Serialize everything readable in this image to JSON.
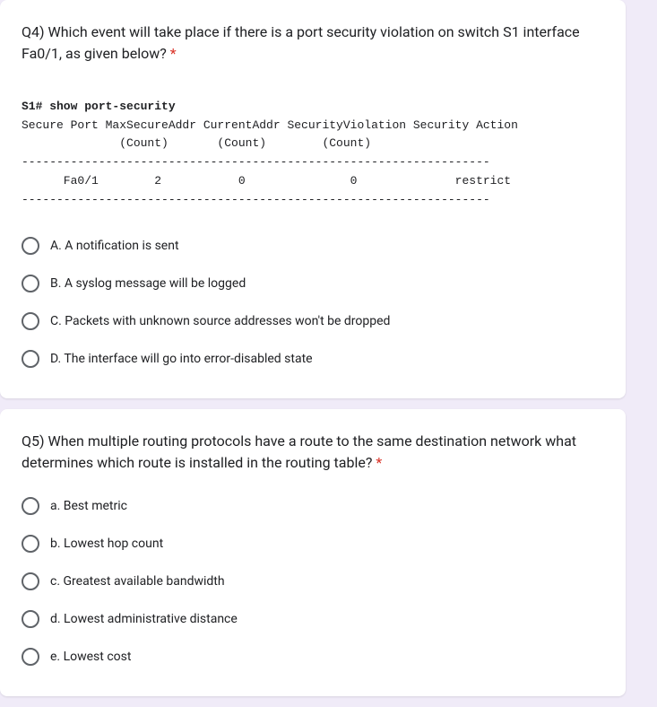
{
  "q4": {
    "title_prefix": "Q4) Which event will take place if there is a port security violation on switch S1 interface Fa0/1, as given below? ",
    "asterisk": "*",
    "terminal": {
      "line1_bold": "S1# show port-security",
      "line2": "Secure Port MaxSecureAddr CurrentAddr SecurityViolation Security Action",
      "line3": "              (Count)       (Count)        (Count)",
      "sep1": "-------------------------------------------------------------------",
      "line4": "      Fa0/1        2           0               0              restrict",
      "sep2": "-------------------------------------------------------------------"
    },
    "options": [
      "A. A notification is sent",
      "B. A syslog message will be logged",
      "C. Packets with unknown source addresses won't be dropped",
      "D. The interface will go into error-disabled state"
    ]
  },
  "q5": {
    "title_prefix": "Q5) When multiple routing protocols have a route to the same destination network what determines which route is installed in the routing table? ",
    "asterisk": "*",
    "options": [
      "a. Best metric",
      "b. Lowest hop count",
      "c. Greatest available bandwidth",
      "d. Lowest administrative distance",
      "e. Lowest cost"
    ]
  },
  "colors": {
    "background": "#f0ebf8",
    "card_bg": "#ffffff",
    "text": "#202124",
    "radio_border": "#5f6368",
    "required": "#d93025"
  }
}
